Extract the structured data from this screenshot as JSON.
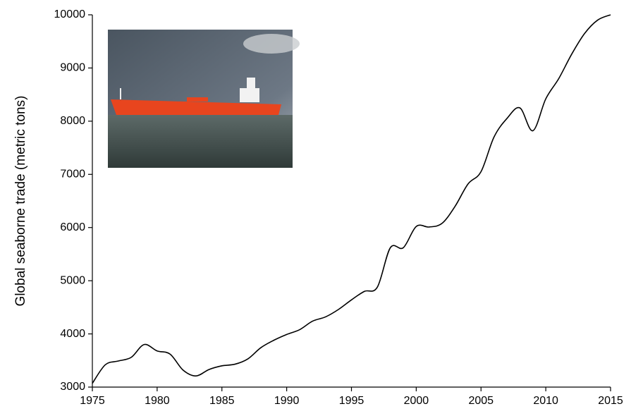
{
  "chart_data": {
    "type": "line",
    "y_label": "Global seaborne trade (metric tons)",
    "x": [
      1975,
      1976,
      1977,
      1978,
      1979,
      1980,
      1981,
      1982,
      1983,
      1984,
      1985,
      1986,
      1987,
      1988,
      1989,
      1990,
      1991,
      1992,
      1993,
      1994,
      1995,
      1996,
      1997,
      1998,
      1999,
      2000,
      2001,
      2002,
      2003,
      2004,
      2005,
      2006,
      2007,
      2008,
      2009,
      2010,
      2011,
      2012,
      2013,
      2014,
      2015
    ],
    "series": [
      {
        "color": "#000000",
        "values": [
          3070,
          3420,
          3490,
          3560,
          3800,
          3680,
          3620,
          3320,
          3210,
          3330,
          3400,
          3430,
          3530,
          3740,
          3880,
          3990,
          4080,
          4240,
          4320,
          4460,
          4640,
          4800,
          4880,
          5620,
          5620,
          6020,
          6010,
          6080,
          6400,
          6820,
          7050,
          7700,
          8050,
          8250,
          7820,
          8420,
          8800,
          9260,
          9650,
          9900,
          10000
        ]
      }
    ],
    "xlim": [
      1975,
      2015
    ],
    "xticks": [
      1975,
      1980,
      1985,
      1990,
      1995,
      2000,
      2005,
      2010,
      2015
    ],
    "ylim": [
      3000,
      10000
    ],
    "yticks": [
      3000,
      4000,
      5000,
      6000,
      7000,
      8000,
      9000,
      10000
    ],
    "grid": false
  }
}
